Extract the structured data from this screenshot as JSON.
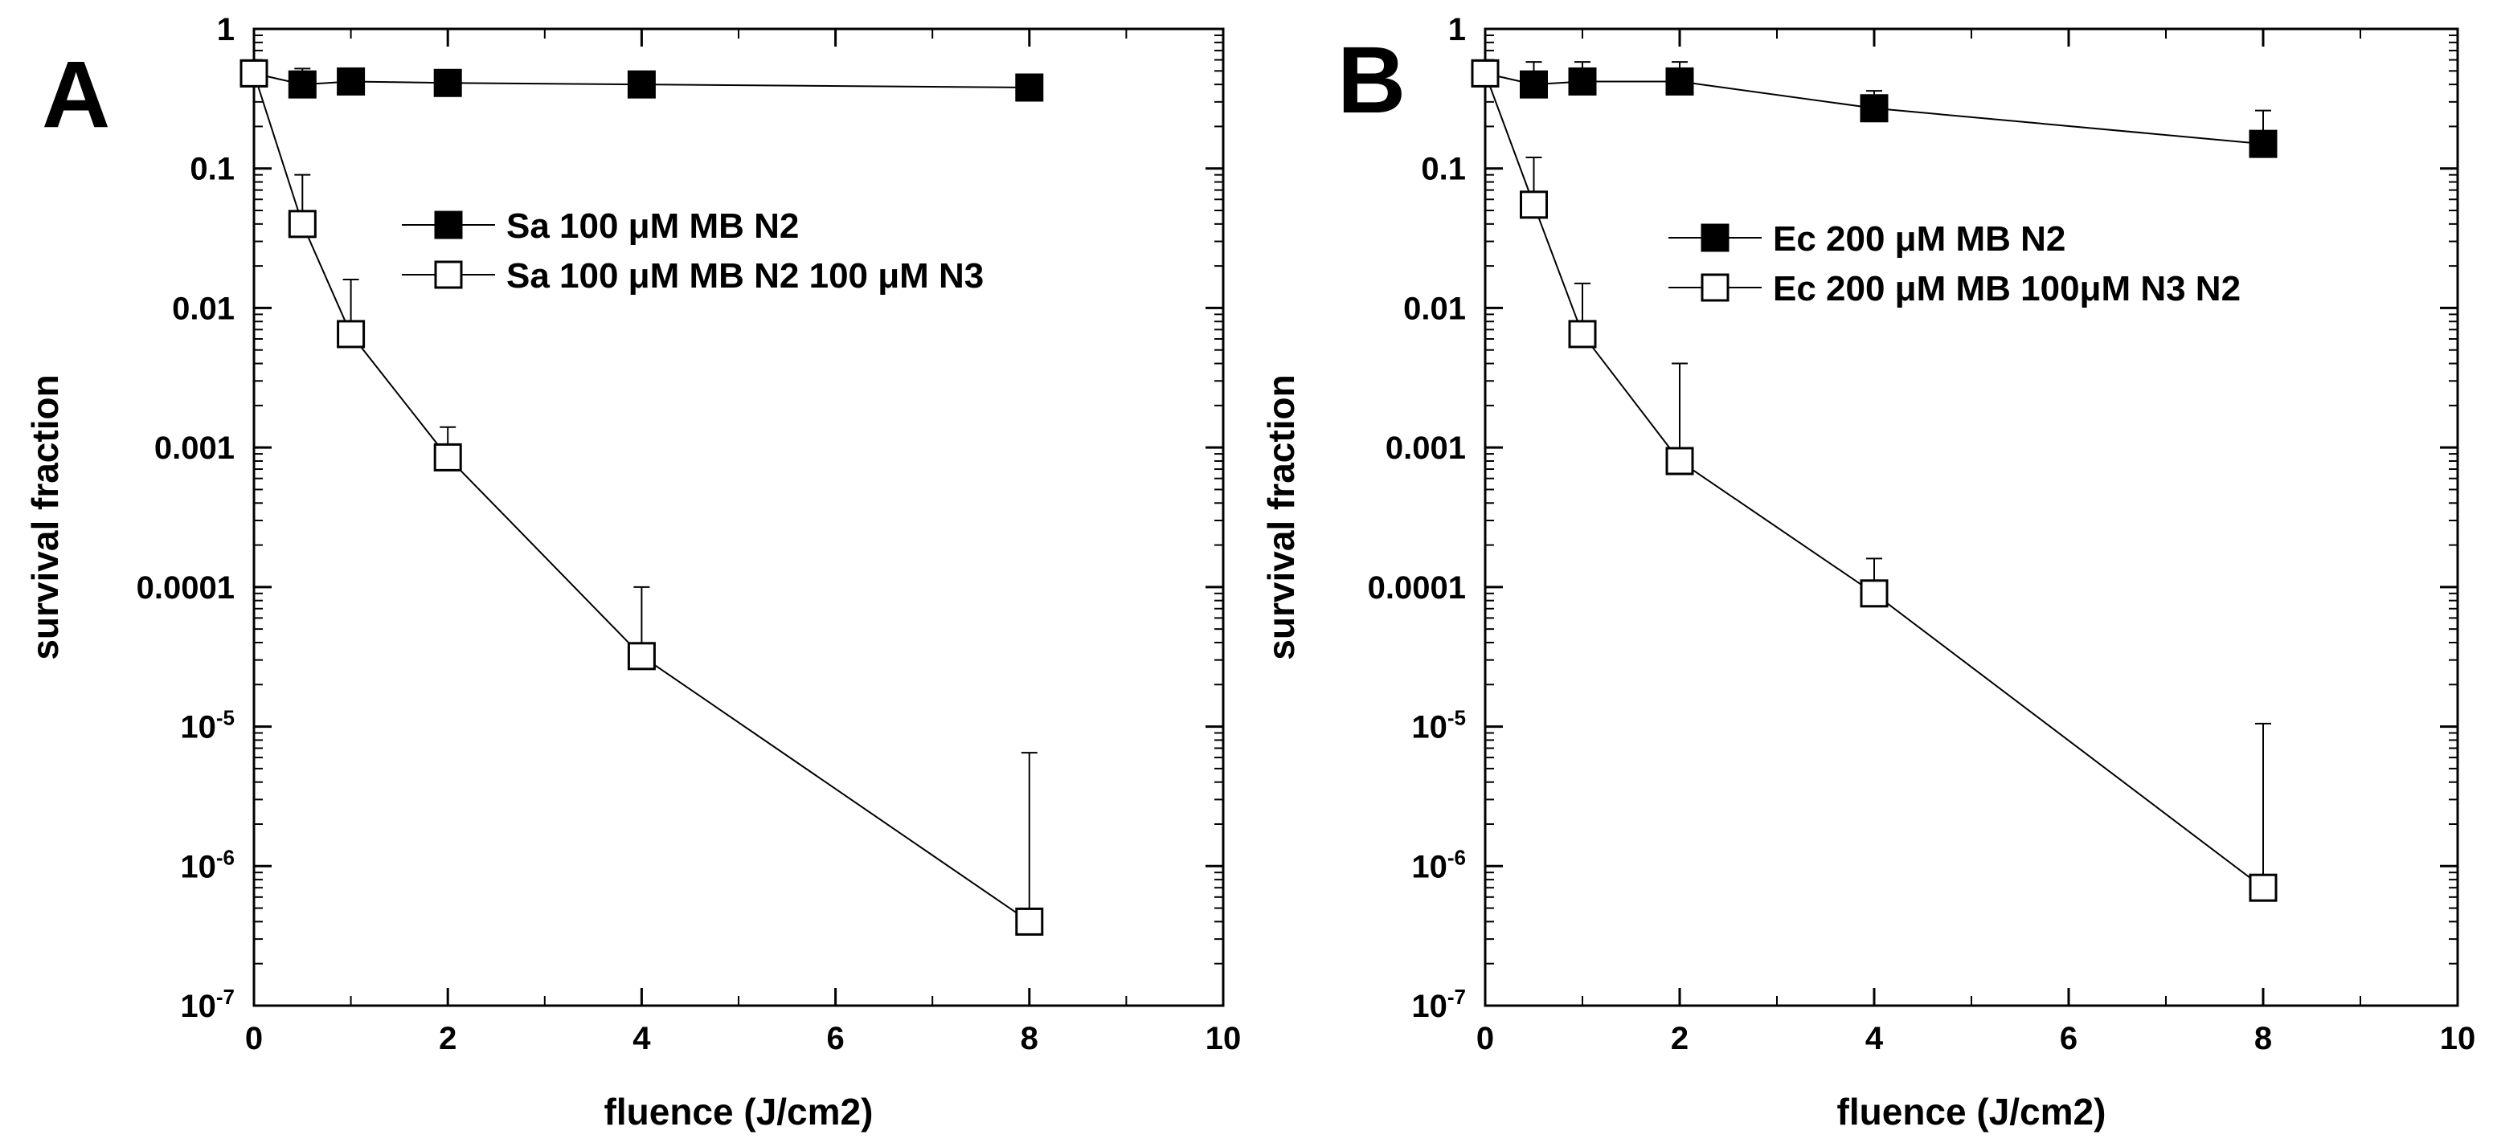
{
  "chart_data": [
    {
      "panel_label": "A",
      "type": "line",
      "xlabel": "fluence (J/cm2)",
      "ylabel": "survival fraction",
      "xlim": [
        0,
        10
      ],
      "ylim": [
        1e-07,
        1
      ],
      "yscale": "log",
      "x_ticks": [
        "0",
        "2",
        "4",
        "6",
        "8",
        "10"
      ],
      "y_ticks": [
        {
          "v": 1,
          "label": "1"
        },
        {
          "v": 0.1,
          "label": "0.1"
        },
        {
          "v": 0.01,
          "label": "0.01"
        },
        {
          "v": 0.001,
          "label": "0.001"
        },
        {
          "v": 0.0001,
          "label": "0.0001"
        },
        {
          "v": 1e-05,
          "base": "10",
          "exp": "-5"
        },
        {
          "v": 1e-06,
          "base": "10",
          "exp": "-6"
        },
        {
          "v": 1e-07,
          "base": "10",
          "exp": "-7"
        }
      ],
      "legend_position": "upper-center",
      "series": [
        {
          "name": "Sa 100 μM MB N2",
          "marker": "filled-square",
          "x": [
            0,
            0.5,
            1,
            2,
            4,
            8
          ],
          "y": [
            0.48,
            0.4,
            0.42,
            0.41,
            0.4,
            0.38
          ],
          "err_upper": [
            null,
            0.52,
            null,
            null,
            0.45,
            0.44
          ]
        },
        {
          "name": "Sa 100 μM MB N2 100 μM N3",
          "marker": "open-square",
          "x": [
            0,
            0.5,
            1,
            2,
            4,
            8
          ],
          "y": [
            0.48,
            0.04,
            0.0065,
            0.00085,
            3.2e-05,
            4e-07
          ],
          "err_upper": [
            null,
            0.09,
            0.016,
            0.0014,
            0.0001,
            6.5e-06
          ]
        }
      ]
    },
    {
      "panel_label": "B",
      "type": "line",
      "xlabel": "fluence (J/cm2)",
      "ylabel": "survival fraction",
      "xlim": [
        0,
        10
      ],
      "ylim": [
        1e-07,
        1
      ],
      "yscale": "log",
      "x_ticks": [
        "0",
        "2",
        "4",
        "6",
        "8",
        "10"
      ],
      "y_ticks": [
        {
          "v": 1,
          "label": "1"
        },
        {
          "v": 0.1,
          "label": "0.1"
        },
        {
          "v": 0.01,
          "label": "0.01"
        },
        {
          "v": 0.001,
          "label": "0.001"
        },
        {
          "v": 0.0001,
          "label": "0.0001"
        },
        {
          "v": 1e-05,
          "base": "10",
          "exp": "-5"
        },
        {
          "v": 1e-06,
          "base": "10",
          "exp": "-6"
        },
        {
          "v": 1e-07,
          "base": "10",
          "exp": "-7"
        }
      ],
      "legend_position": "upper-right",
      "series": [
        {
          "name": "Ec 200 μM MB N2",
          "marker": "filled-square",
          "x": [
            0,
            0.5,
            1,
            2,
            4,
            8
          ],
          "y": [
            0.48,
            0.4,
            0.42,
            0.42,
            0.27,
            0.15
          ],
          "err_upper": [
            null,
            0.58,
            0.58,
            0.58,
            0.36,
            0.26
          ]
        },
        {
          "name": "Ec 200 μM MB 100μM N3 N2",
          "marker": "open-square",
          "x": [
            0,
            0.5,
            1,
            2,
            4,
            8
          ],
          "y": [
            0.48,
            0.055,
            0.0065,
            0.0008,
            9e-05,
            7e-07
          ],
          "err_upper": [
            null,
            0.12,
            0.015,
            0.004,
            0.00016,
            1.05e-05
          ]
        }
      ]
    }
  ]
}
